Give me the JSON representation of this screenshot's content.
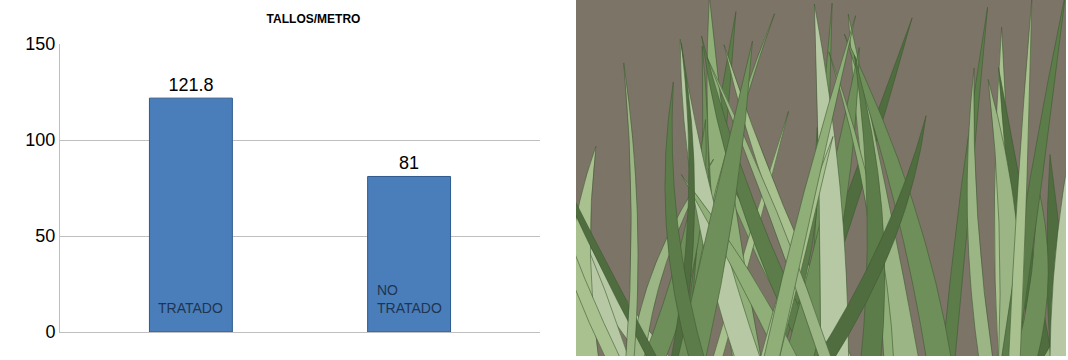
{
  "chart_data": {
    "type": "bar",
    "title": "TALLOS/METRO",
    "categories": [
      "TRATADO",
      "NO TRATADO"
    ],
    "values": [
      121.8,
      81
    ],
    "color": "#4a7ebb",
    "ylim": [
      0,
      150
    ],
    "yticks": [
      0,
      50,
      100,
      150
    ],
    "grid": true,
    "data_labels": true,
    "tick_labels": "y"
  }
}
